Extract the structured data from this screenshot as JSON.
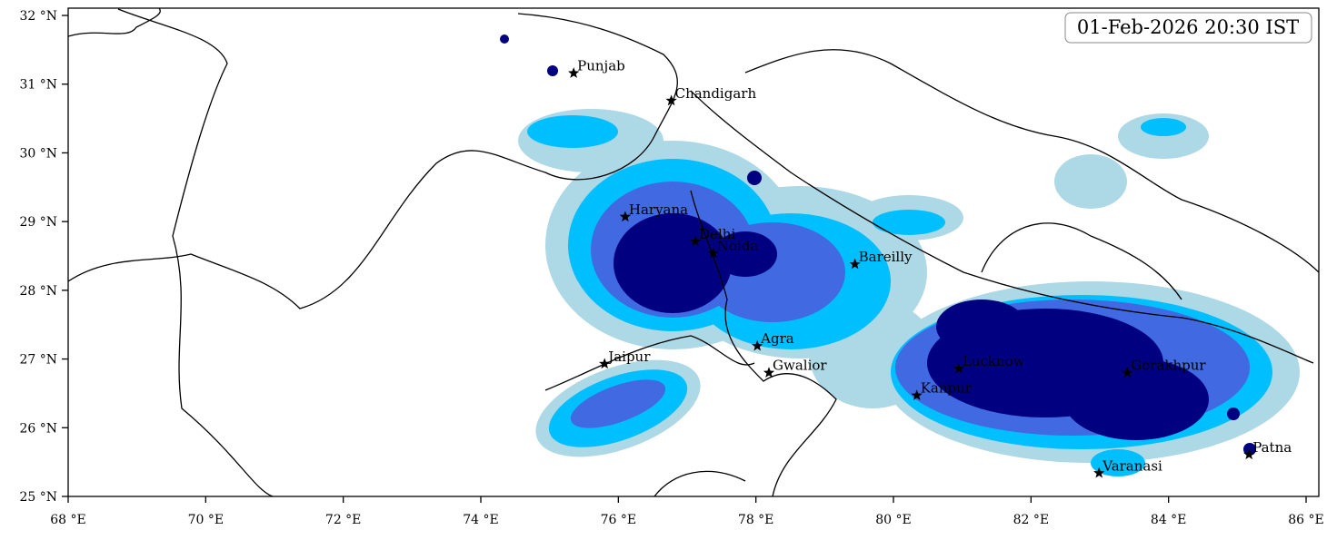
{
  "map": {
    "timestamp": "01-Feb-2026 20:30 IST",
    "xlim": [
      68,
      86.185
    ],
    "ylim": [
      25,
      32.106
    ],
    "xticks": [
      {
        "value": 68,
        "label": "68 °E"
      },
      {
        "value": 70,
        "label": "70 °E"
      },
      {
        "value": 72,
        "label": "72 °E"
      },
      {
        "value": 74,
        "label": "74 °E"
      },
      {
        "value": 76,
        "label": "76 °E"
      },
      {
        "value": 78,
        "label": "78 °E"
      },
      {
        "value": 80,
        "label": "80 °E"
      },
      {
        "value": 82,
        "label": "82 °E"
      },
      {
        "value": 84,
        "label": "84 °E"
      },
      {
        "value": 86,
        "label": "86 °E"
      }
    ],
    "yticks": [
      {
        "value": 25,
        "label": "25 °N"
      },
      {
        "value": 26,
        "label": "26 °N"
      },
      {
        "value": 27,
        "label": "27 °N"
      },
      {
        "value": 28,
        "label": "28 °N"
      },
      {
        "value": 29,
        "label": "29 °N"
      },
      {
        "value": 30,
        "label": "30 °N"
      },
      {
        "value": 31,
        "label": "31 °N"
      },
      {
        "value": 32,
        "label": "32 °N"
      }
    ],
    "cities": [
      {
        "name": "Punjab",
        "lon": 75.35,
        "lat": 31.16
      },
      {
        "name": "Chandigarh",
        "lon": 76.77,
        "lat": 30.76
      },
      {
        "name": "Haryana",
        "lon": 76.1,
        "lat": 29.07
      },
      {
        "name": "Delhi",
        "lon": 77.12,
        "lat": 28.71
      },
      {
        "name": "Noida",
        "lon": 77.38,
        "lat": 28.54
      },
      {
        "name": "Bareilly",
        "lon": 79.44,
        "lat": 28.38
      },
      {
        "name": "Agra",
        "lon": 78.02,
        "lat": 27.19
      },
      {
        "name": "Jaipur",
        "lon": 75.8,
        "lat": 26.93
      },
      {
        "name": "Gwalior",
        "lon": 78.19,
        "lat": 26.8
      },
      {
        "name": "Lucknow",
        "lon": 80.95,
        "lat": 26.86
      },
      {
        "name": "Kanpur",
        "lon": 80.34,
        "lat": 26.47
      },
      {
        "name": "Gorakhpur",
        "lon": 83.4,
        "lat": 26.8
      },
      {
        "name": "Varanasi",
        "lon": 82.99,
        "lat": 25.34
      },
      {
        "name": "Patna",
        "lon": 85.17,
        "lat": 25.61
      }
    ]
  }
}
